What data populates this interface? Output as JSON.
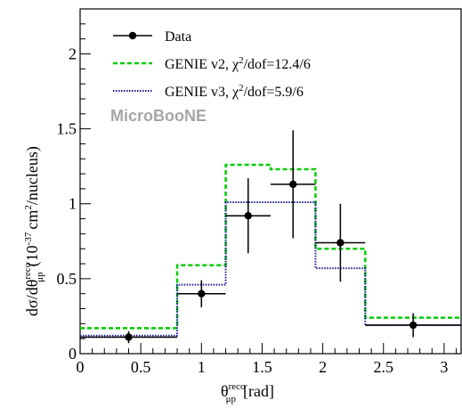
{
  "chart_data": {
    "type": "step",
    "title": "",
    "watermark": "MicroBooNE",
    "xlabel": {
      "symbol": "θ",
      "superscript": "reco",
      "subscript": "μp",
      "unit": "[rad]"
    },
    "ylabel": {
      "prefix": "dσ/dθ",
      "superscript": "reco",
      "subscript": "μp",
      "unit_open": "(10",
      "unit_exp": "-37",
      "unit_mid": "cm",
      "unit_exp2": "2",
      "unit_close": "/nucleus)"
    },
    "xlim": [
      0,
      3.14
    ],
    "ylim": [
      0,
      2.3
    ],
    "x_ticks": [
      {
        "v": 0,
        "label": "0"
      },
      {
        "v": 0.5,
        "label": "0.5"
      },
      {
        "v": 1,
        "label": "1"
      },
      {
        "v": 1.5,
        "label": "1.5"
      },
      {
        "v": 2,
        "label": "2"
      },
      {
        "v": 2.5,
        "label": "2.5"
      },
      {
        "v": 3,
        "label": "3"
      }
    ],
    "y_ticks": [
      {
        "v": 0,
        "label": "0"
      },
      {
        "v": 0.5,
        "label": "0.5"
      },
      {
        "v": 1,
        "label": "1"
      },
      {
        "v": 1.5,
        "label": "1.5"
      },
      {
        "v": 2,
        "label": "2"
      }
    ],
    "bin_edges": [
      0,
      0.8,
      1.2,
      1.57,
      1.94,
      2.35,
      3.14
    ],
    "data": {
      "name": "Data",
      "x": [
        0.4,
        1.0,
        1.385,
        1.755,
        2.145,
        2.745
      ],
      "y": [
        0.11,
        0.4,
        0.92,
        1.13,
        0.74,
        0.19
      ],
      "err": [
        0.04,
        0.09,
        0.25,
        0.36,
        0.26,
        0.08
      ]
    },
    "series": [
      {
        "name": "GENIE v2",
        "chi_label": "χ",
        "chi_sup": "2",
        "chi_value": "/dof=12.4/6",
        "values": [
          0.17,
          0.59,
          1.26,
          1.23,
          0.7,
          0.24
        ],
        "color": "#00cc00",
        "dash": "5,3"
      },
      {
        "name": "GENIE v3",
        "chi_label": "χ",
        "chi_sup": "2",
        "chi_value": "/dof=5.9/6",
        "values": [
          0.12,
          0.46,
          1.01,
          1.01,
          0.57,
          0.19
        ],
        "color": "#1a1a9e",
        "dash": "1.5,1.5"
      }
    ],
    "legend_position": "top-left"
  }
}
